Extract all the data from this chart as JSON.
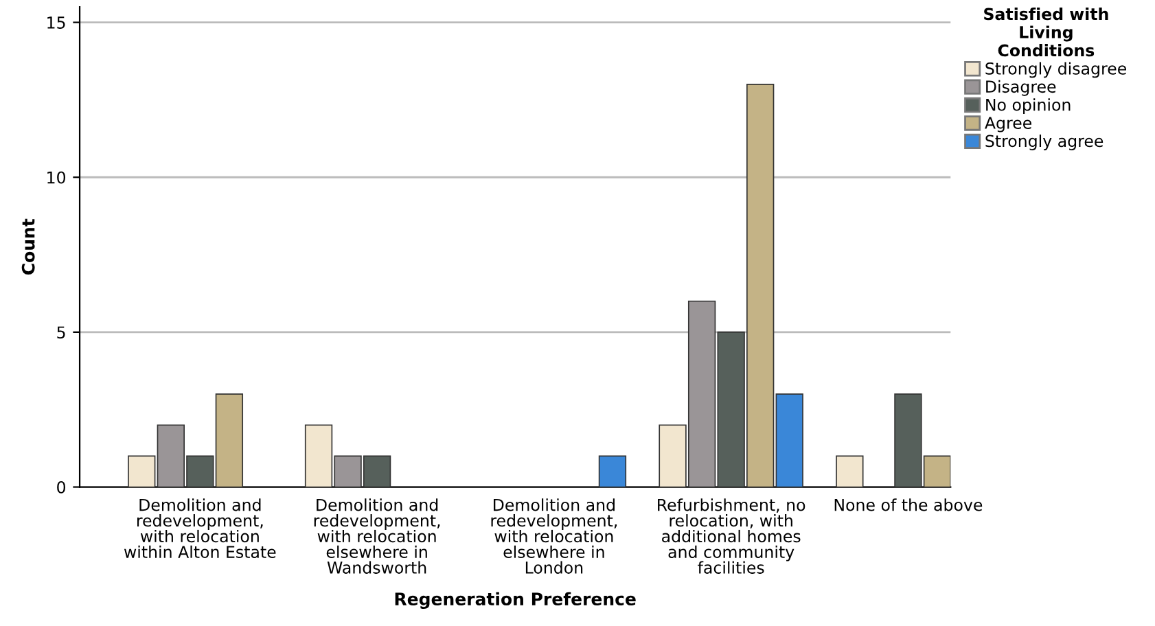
{
  "chart_data": {
    "type": "bar",
    "xlabel": "Regeneration Preference",
    "ylabel": "Count",
    "legend_title": "Satisfied with\nLiving\nConditions",
    "categories": [
      "Demolition and\nredevelopment,\nwith relocation\nwithin Alton Estate",
      "Demolition and\nredevelopment,\nwith relocation\nelsewhere in\nWandsworth",
      "Demolition and\nredevelopment,\nwith relocation\nelsewhere in\nLondon",
      "Refurbishment, no\nrelocation, with\nadditional homes\nand community\nfacilities",
      "None of the above"
    ],
    "series": [
      {
        "name": "Strongly disagree",
        "color": "#f2e6cf",
        "values": [
          1,
          2,
          null,
          2,
          1
        ]
      },
      {
        "name": "Disagree",
        "color": "#9a9597",
        "values": [
          2,
          1,
          null,
          6,
          null
        ]
      },
      {
        "name": "No opinion",
        "color": "#56605b",
        "values": [
          1,
          1,
          null,
          5,
          3
        ]
      },
      {
        "name": "Agree",
        "color": "#c4b386",
        "values": [
          3,
          null,
          null,
          13,
          1
        ]
      },
      {
        "name": "Strongly agree",
        "color": "#3a87d8",
        "values": [
          null,
          null,
          1,
          3,
          null
        ]
      }
    ],
    "ylim": [
      0,
      15.5
    ],
    "yticks": [
      0,
      5,
      10,
      15
    ],
    "grid": "y",
    "legend": "right"
  }
}
